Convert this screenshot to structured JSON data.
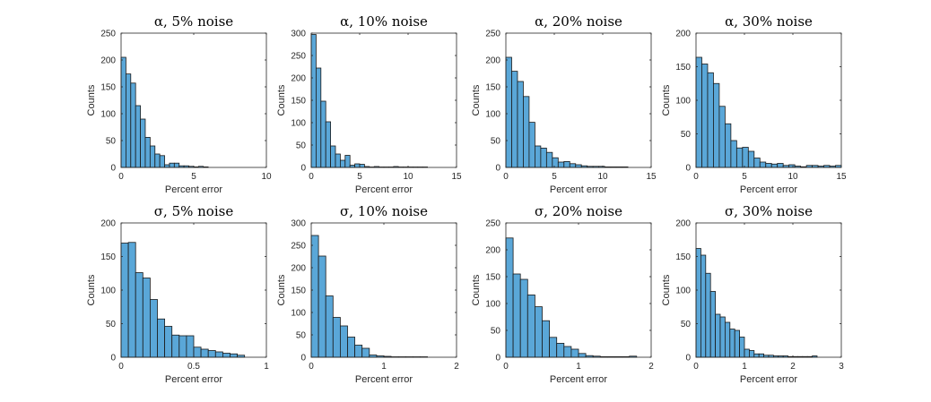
{
  "colors": {
    "bar_fill": "#5aa7d8",
    "bar_edge": "#1a1a1a",
    "axis": "#262626"
  },
  "chart_data": [
    {
      "type": "bar",
      "title": "α, 5% noise",
      "xlabel": "Percent error",
      "ylabel": "Counts",
      "xlim": [
        0,
        10
      ],
      "ylim": [
        0,
        250
      ],
      "xticks": [
        0,
        5,
        10
      ],
      "yticks": [
        0,
        50,
        100,
        150,
        200,
        250
      ],
      "grid": false,
      "bin_start": 0,
      "bin_width": 0.333,
      "values": [
        205,
        174,
        157,
        115,
        90,
        56,
        40,
        25,
        22,
        5,
        8,
        8,
        3,
        3,
        2,
        1,
        2,
        1,
        0,
        0,
        0,
        0,
        0,
        0,
        0,
        0,
        0,
        0,
        0,
        0
      ]
    },
    {
      "type": "bar",
      "title": "α, 10% noise",
      "xlabel": "Percent error",
      "ylabel": "Counts",
      "xlim": [
        0,
        15
      ],
      "ylim": [
        0,
        300
      ],
      "xticks": [
        0,
        5,
        10,
        15
      ],
      "yticks": [
        0,
        50,
        100,
        150,
        200,
        250,
        300
      ],
      "grid": false,
      "bin_start": 0,
      "bin_width": 0.5,
      "values": [
        297,
        222,
        148,
        102,
        48,
        30,
        16,
        27,
        5,
        8,
        7,
        2,
        1,
        2,
        1,
        1,
        1,
        2,
        1,
        1,
        1,
        1,
        1,
        1
      ]
    },
    {
      "type": "bar",
      "title": "α, 20% noise",
      "xlabel": "Percent error",
      "ylabel": "Counts",
      "xlim": [
        0,
        15
      ],
      "ylim": [
        0,
        250
      ],
      "xticks": [
        0,
        5,
        10,
        15
      ],
      "yticks": [
        0,
        50,
        100,
        150,
        200,
        250
      ],
      "grid": false,
      "bin_start": 0,
      "bin_width": 0.6,
      "values": [
        205,
        179,
        160,
        132,
        84,
        40,
        36,
        28,
        18,
        10,
        11,
        7,
        5,
        3,
        2,
        2,
        2,
        1,
        1,
        1,
        1
      ]
    },
    {
      "type": "bar",
      "title": "α, 30% noise",
      "xlabel": "Percent error",
      "ylabel": "Counts",
      "xlim": [
        0,
        15
      ],
      "ylim": [
        0,
        200
      ],
      "xticks": [
        0,
        5,
        10,
        15
      ],
      "yticks": [
        0,
        50,
        100,
        150,
        200
      ],
      "grid": false,
      "bin_start": 0,
      "bin_width": 0.6,
      "values": [
        164,
        154,
        141,
        125,
        91,
        65,
        40,
        29,
        30,
        24,
        14,
        8,
        6,
        5,
        6,
        3,
        4,
        2,
        1,
        3,
        3,
        2,
        3,
        2,
        3
      ]
    },
    {
      "type": "bar",
      "title": "σ, 5% noise",
      "xlabel": "Percent error",
      "ylabel": "Counts",
      "xlim": [
        0,
        1
      ],
      "ylim": [
        0,
        200
      ],
      "xticks": [
        0,
        0.5,
        1
      ],
      "yticks": [
        0,
        50,
        100,
        150,
        200
      ],
      "grid": false,
      "bin_start": 0,
      "bin_width": 0.05,
      "values": [
        170,
        171,
        126,
        118,
        86,
        57,
        46,
        33,
        32,
        32,
        15,
        12,
        10,
        8,
        6,
        5,
        3
      ]
    },
    {
      "type": "bar",
      "title": "σ, 10% noise",
      "xlabel": "Percent error",
      "ylabel": "Counts",
      "xlim": [
        0,
        2
      ],
      "ylim": [
        0,
        300
      ],
      "xticks": [
        0,
        1,
        2
      ],
      "yticks": [
        0,
        50,
        100,
        150,
        200,
        250,
        300
      ],
      "grid": false,
      "bin_start": 0,
      "bin_width": 0.1,
      "values": [
        272,
        226,
        137,
        89,
        70,
        45,
        27,
        20,
        5,
        3,
        2,
        1,
        1,
        1,
        1,
        1
      ]
    },
    {
      "type": "bar",
      "title": "σ, 20% noise",
      "xlabel": "Percent error",
      "ylabel": "Counts",
      "xlim": [
        0,
        2
      ],
      "ylim": [
        0,
        250
      ],
      "xticks": [
        0,
        1,
        2
      ],
      "yticks": [
        0,
        50,
        100,
        150,
        200,
        250
      ],
      "grid": false,
      "bin_start": 0,
      "bin_width": 0.1,
      "values": [
        222,
        155,
        145,
        116,
        94,
        68,
        37,
        26,
        20,
        15,
        7,
        3,
        2,
        1,
        1,
        1,
        1,
        2
      ]
    },
    {
      "type": "bar",
      "title": "σ, 30% noise",
      "xlabel": "Percent error",
      "ylabel": "Counts",
      "xlim": [
        0,
        3
      ],
      "ylim": [
        0,
        200
      ],
      "xticks": [
        0,
        1,
        2,
        3
      ],
      "yticks": [
        0,
        50,
        100,
        150,
        200
      ],
      "grid": false,
      "bin_start": 0,
      "bin_width": 0.1,
      "values": [
        162,
        152,
        125,
        98,
        64,
        60,
        52,
        42,
        40,
        30,
        12,
        10,
        5,
        5,
        3,
        3,
        2,
        2,
        2,
        1,
        1,
        1,
        1,
        1,
        2
      ]
    }
  ]
}
